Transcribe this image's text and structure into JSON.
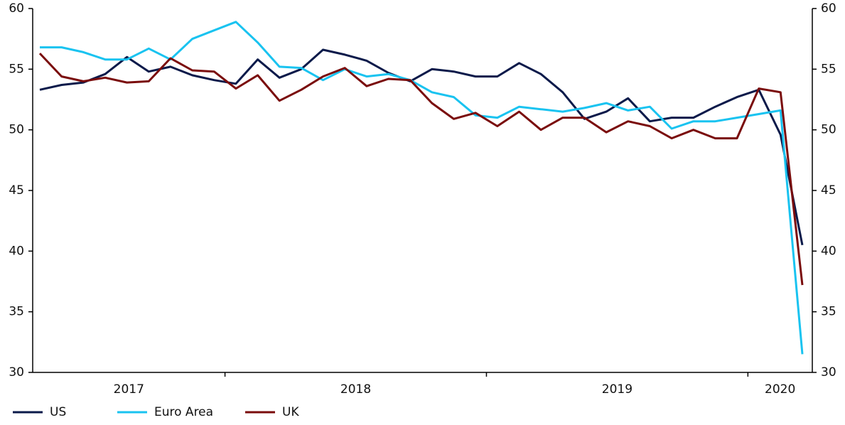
{
  "chart_data": {
    "type": "line",
    "categories": [
      null,
      null,
      null,
      null,
      null,
      null,
      null,
      null,
      null,
      null,
      null,
      null,
      null,
      null,
      null,
      null,
      null,
      null,
      null,
      null,
      null,
      null,
      null,
      null,
      null,
      null,
      null,
      null,
      null,
      null,
      null,
      null,
      null,
      null,
      null,
      null
    ],
    "x_groups": [
      {
        "label": "2017",
        "count": 9
      },
      {
        "label": "2018",
        "count": 12
      },
      {
        "label": "2019",
        "count": 12
      },
      {
        "label": "2020",
        "count": 3
      }
    ],
    "series": [
      {
        "name": "US",
        "color": "#0b1a4a",
        "values": [
          53.3,
          53.7,
          53.9,
          54.6,
          56.0,
          54.8,
          55.2,
          54.5,
          54.1,
          53.8,
          55.8,
          54.3,
          55.0,
          56.6,
          56.2,
          55.7,
          54.7,
          54.0,
          55.0,
          54.8,
          54.4,
          54.4,
          55.5,
          54.6,
          53.1,
          50.9,
          51.5,
          52.6,
          50.7,
          51.0,
          51.0,
          51.9,
          52.7,
          53.3,
          49.6,
          40.5
        ]
      },
      {
        "name": "Euro Area",
        "color": "#19c3f0",
        "values": [
          56.8,
          56.8,
          56.4,
          55.8,
          55.8,
          56.7,
          55.8,
          57.5,
          58.2,
          58.9,
          57.2,
          55.2,
          55.1,
          54.1,
          55.0,
          54.4,
          54.6,
          54.1,
          53.1,
          52.7,
          51.2,
          51.0,
          51.9,
          51.7,
          51.5,
          51.8,
          52.2,
          51.6,
          51.9,
          50.1,
          50.7,
          50.7,
          51.0,
          51.3,
          51.6,
          31.5
        ]
      },
      {
        "name": "UK",
        "color": "#7a0c0c",
        "values": [
          56.3,
          54.4,
          54.0,
          54.3,
          53.9,
          54.0,
          55.9,
          54.9,
          54.8,
          53.4,
          54.5,
          52.4,
          53.3,
          54.4,
          55.1,
          53.6,
          54.2,
          54.1,
          52.2,
          50.9,
          51.4,
          50.3,
          51.5,
          50.0,
          51.0,
          51.0,
          49.8,
          50.7,
          50.3,
          49.3,
          50.0,
          49.3,
          49.3,
          53.4,
          53.1,
          37.2
        ]
      }
    ],
    "ylim": [
      30,
      60
    ],
    "yticks": [
      30,
      35,
      40,
      45,
      50,
      55,
      60
    ],
    "y2lim": [
      30,
      60
    ],
    "y2ticks": [
      30,
      35,
      40,
      45,
      50,
      55,
      60
    ],
    "legend": "bottom-left"
  }
}
